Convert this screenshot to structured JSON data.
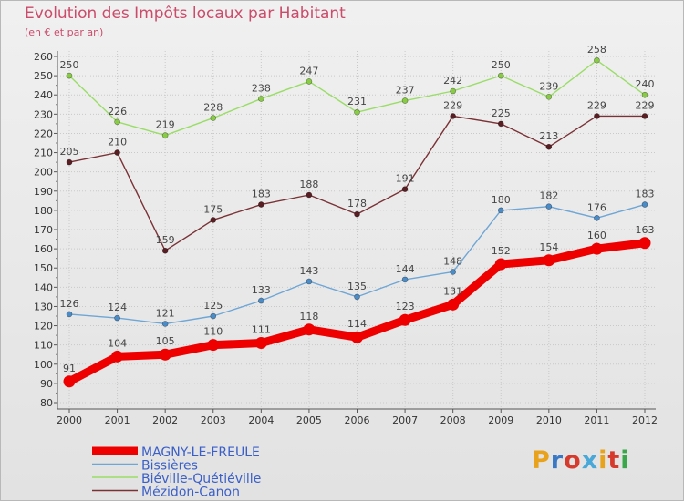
{
  "title": "Evolution des Impôts locaux par Habitant",
  "subtitle": "(en € et par an)",
  "logo_text": "Proxiti",
  "logo_colors": [
    "#e8a21c",
    "#3a78c6",
    "#d63a2c",
    "#4aa8d8",
    "#e8a21c",
    "#d63a2c",
    "#3aa84a"
  ],
  "chart_data": {
    "type": "line",
    "x": [
      2000,
      2001,
      2002,
      2003,
      2004,
      2005,
      2006,
      2007,
      2008,
      2009,
      2010,
      2011,
      2012
    ],
    "ylim": [
      80,
      260
    ],
    "ytick_step": 10,
    "yticks": [
      80,
      90,
      100,
      110,
      120,
      130,
      140,
      150,
      160,
      170,
      180,
      190,
      200,
      210,
      220,
      230,
      240,
      250,
      260
    ],
    "grid": true,
    "legend_position": "bottom-left",
    "series": [
      {
        "name": "Biéville-Quétiéville",
        "color": "#99dd66",
        "marker": "#88cc44",
        "values": [
          250,
          226,
          219,
          228,
          238,
          247,
          231,
          237,
          242,
          250,
          239,
          258,
          240
        ]
      },
      {
        "name": "Mézidon-Canon",
        "color": "#7a3236",
        "marker": "#5a1d22",
        "values": [
          205,
          210,
          159,
          175,
          183,
          188,
          178,
          191,
          229,
          225,
          213,
          229,
          229
        ]
      },
      {
        "name": "Bissières",
        "color": "#6ea6d6",
        "marker": "#4a8cc8",
        "values": [
          126,
          124,
          121,
          125,
          133,
          143,
          135,
          144,
          148,
          180,
          182,
          176,
          183
        ]
      },
      {
        "name": "MAGNY-LE-FREULE",
        "color": "#ee0000",
        "marker": "#ee0000",
        "values": [
          91,
          104,
          105,
          110,
          111,
          118,
          114,
          123,
          131,
          152,
          154,
          160,
          163
        ]
      }
    ],
    "legend": [
      {
        "name": "MAGNY-LE-FREULE",
        "color": "#ee0000"
      },
      {
        "name": "Bissières",
        "color": "#6ea6d6"
      },
      {
        "name": "Biéville-Quétiéville",
        "color": "#99dd66"
      },
      {
        "name": "Mézidon-Canon",
        "color": "#7a3236"
      }
    ]
  }
}
